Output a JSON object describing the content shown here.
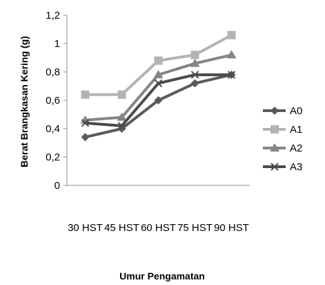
{
  "chart_data": {
    "type": "line",
    "title": "",
    "xlabel": "Umur Pengamatan",
    "ylabel": "Berat Brangkasan Kering (g)",
    "categories": [
      "30 HST",
      "45 HST",
      "60 HST",
      "75 HST",
      "90 HST"
    ],
    "ylim": [
      0,
      1.2
    ],
    "yticks": [
      "0",
      "0,2",
      "0,4",
      "0,6",
      "0,8",
      "1",
      "1,2"
    ],
    "grid": false,
    "legend_position": "right",
    "series": [
      {
        "name": "A0",
        "marker": "diamond",
        "color": "#5a5a5a",
        "values": [
          0.34,
          0.4,
          0.6,
          0.72,
          0.78
        ]
      },
      {
        "name": "A1",
        "marker": "square",
        "color": "#b3b3b3",
        "values": [
          0.64,
          0.64,
          0.88,
          0.92,
          1.06
        ]
      },
      {
        "name": "A2",
        "marker": "triangle",
        "color": "#858585",
        "values": [
          0.46,
          0.48,
          0.78,
          0.86,
          0.92
        ]
      },
      {
        "name": "A3",
        "marker": "x",
        "color": "#4a4a4a",
        "values": [
          0.44,
          0.42,
          0.72,
          0.78,
          0.78
        ]
      }
    ]
  }
}
